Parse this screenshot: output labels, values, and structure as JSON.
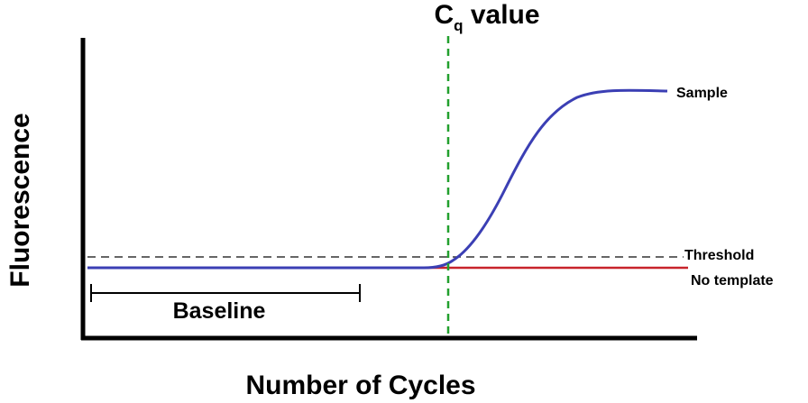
{
  "chart": {
    "ylabel": "Fluorescence",
    "xlabel": "Number of Cycles",
    "cq": {
      "main": "C",
      "subscript": "q",
      "rest": " value"
    },
    "series": {
      "sample": "Sample",
      "threshold": "Threshold",
      "no_template": "No template"
    },
    "baseline_label": "Baseline",
    "colors": {
      "sample": "#3b3fb4",
      "no_template": "#c8232c",
      "cq_line": "#22a02e",
      "threshold": "#333333",
      "axes": "#000000"
    }
  }
}
